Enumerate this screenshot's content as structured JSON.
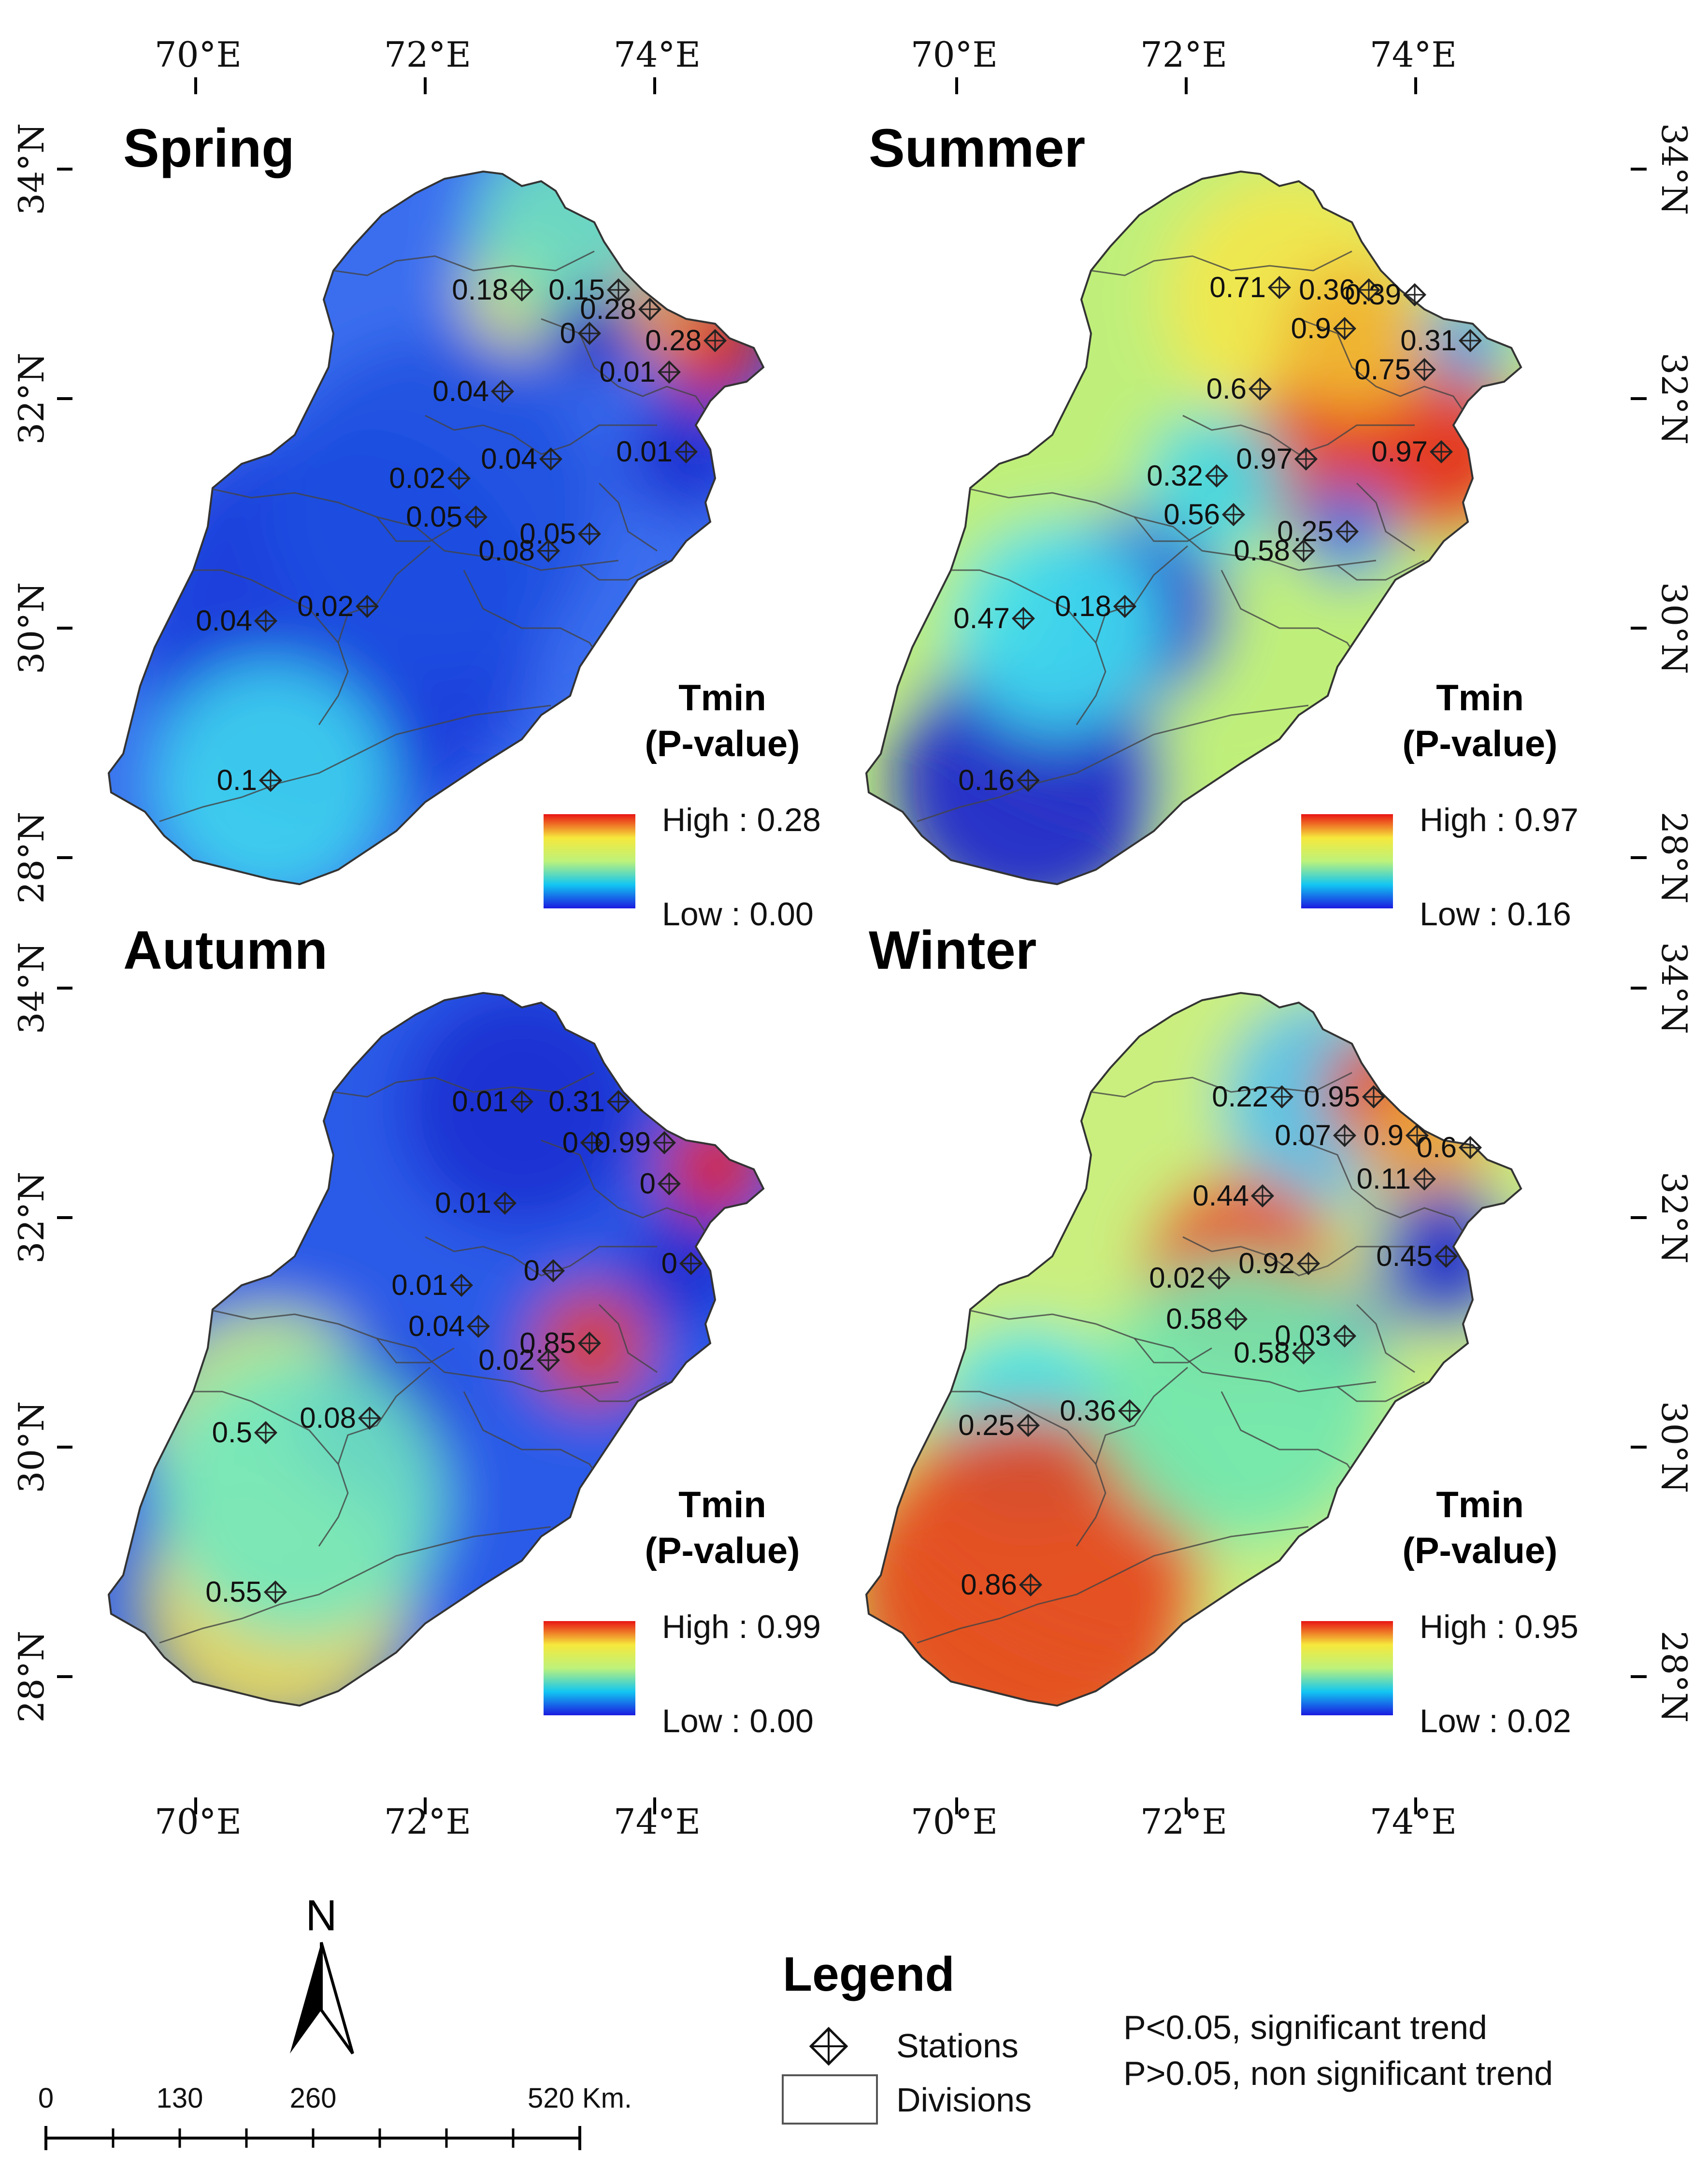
{
  "axes": {
    "lon_labels": [
      "70°E",
      "72°E",
      "74°E"
    ],
    "lat_labels": [
      "34°N",
      "32°N",
      "30°N",
      "28°N"
    ]
  },
  "panels": [
    {
      "title": "Spring",
      "legend": {
        "title_line1": "Tmin",
        "title_line2": "(P-value)",
        "high": "High : 0.28",
        "low": "Low : 0.00"
      },
      "stations": [
        {
          "label": "0.18"
        },
        {
          "label": "0.15"
        },
        {
          "label": "0.28"
        },
        {
          "label": "0"
        },
        {
          "label": "0.28"
        },
        {
          "label": "0.01"
        },
        {
          "label": "0.04"
        },
        {
          "label": "0.04"
        },
        {
          "label": "0.01"
        },
        {
          "label": "0.02"
        },
        {
          "label": "0.05"
        },
        {
          "label": "0.05"
        },
        {
          "label": "0.08"
        },
        {
          "label": "0.04"
        },
        {
          "label": "0.02"
        },
        {
          "label": "0.1"
        }
      ]
    },
    {
      "title": "Summer",
      "legend": {
        "title_line1": "Tmin",
        "title_line2": "(P-value)",
        "high": "High : 0.97",
        "low": "Low : 0.16"
      },
      "stations": [
        {
          "label": "0.71"
        },
        {
          "label": "0.36"
        },
        {
          "label": "0.39"
        },
        {
          "label": "0.9"
        },
        {
          "label": "0.31"
        },
        {
          "label": "0.75"
        },
        {
          "label": "0.6"
        },
        {
          "label": "0.97"
        },
        {
          "label": "0.97"
        },
        {
          "label": "0.32"
        },
        {
          "label": "0.56"
        },
        {
          "label": "0.25"
        },
        {
          "label": "0.58"
        },
        {
          "label": "0.47"
        },
        {
          "label": "0.18"
        },
        {
          "label": "0.16"
        }
      ]
    },
    {
      "title": "Autumn",
      "legend": {
        "title_line1": "Tmin",
        "title_line2": "(P-value)",
        "high": "High : 0.99",
        "low": "Low : 0.00"
      },
      "stations": [
        {
          "label": "0.01"
        },
        {
          "label": "0.31"
        },
        {
          "label": "0"
        },
        {
          "label": "0.99"
        },
        {
          "label": "0"
        },
        {
          "label": "0.01"
        },
        {
          "label": "0"
        },
        {
          "label": "0"
        },
        {
          "label": "0.01"
        },
        {
          "label": "0.04"
        },
        {
          "label": "0.85"
        },
        {
          "label": "0.02"
        },
        {
          "label": "0.5"
        },
        {
          "label": "0.08"
        },
        {
          "label": "0.55"
        }
      ]
    },
    {
      "title": "Winter",
      "legend": {
        "title_line1": "Tmin",
        "title_line2": "(P-value)",
        "high": "High : 0.95",
        "low": "Low : 0.02"
      },
      "stations": [
        {
          "label": "0.22"
        },
        {
          "label": "0.95"
        },
        {
          "label": "0.07"
        },
        {
          "label": "0.9"
        },
        {
          "label": "0.6"
        },
        {
          "label": "0.11"
        },
        {
          "label": "0.44"
        },
        {
          "label": "0.92"
        },
        {
          "label": "0.45"
        },
        {
          "label": "0.02"
        },
        {
          "label": "0.58"
        },
        {
          "label": "0.03"
        },
        {
          "label": "0.58"
        },
        {
          "label": "0.25"
        },
        {
          "label": "0.36"
        },
        {
          "label": "0.86"
        }
      ]
    }
  ],
  "north_arrow": {
    "label": "N"
  },
  "scale_bar": {
    "labels": [
      "0",
      "130",
      "260",
      "520 Km."
    ]
  },
  "legend": {
    "title": "Legend",
    "stations_label": "Stations",
    "divisions_label": "Divisions",
    "note_line1": "P<0.05, significant trend",
    "note_line2": "P>0.05, non significant trend"
  },
  "colors": {
    "low": "#1f3fe0",
    "mid_low": "#22c8f0",
    "mid": "#c8f078",
    "mid_high": "#f6e24a",
    "high": "#e8221a"
  }
}
